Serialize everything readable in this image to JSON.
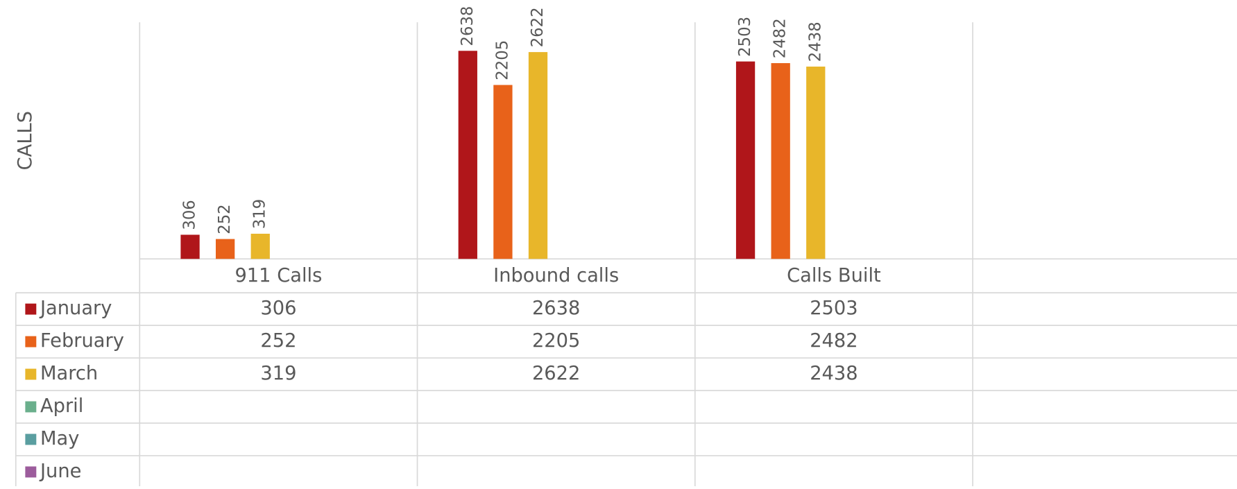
{
  "chart_data": {
    "type": "bar",
    "y_label": "CALLS",
    "categories": [
      "911 Calls",
      "Inbound calls",
      "Calls Built",
      null
    ],
    "series": [
      {
        "name": "January",
        "color": "#b0161a",
        "values": [
          306,
          2638,
          2503,
          null
        ]
      },
      {
        "name": "February",
        "color": "#e8621a",
        "values": [
          252,
          2205,
          2482,
          null
        ]
      },
      {
        "name": "March",
        "color": "#e8b62a",
        "values": [
          319,
          2622,
          2438,
          null
        ]
      },
      {
        "name": "April",
        "color": "#6aaf8c",
        "values": [
          null,
          null,
          null,
          null
        ]
      },
      {
        "name": "May",
        "color": "#5a9ea0",
        "values": [
          null,
          null,
          null,
          null
        ]
      },
      {
        "name": "June",
        "color": "#9c5c9c",
        "values": [
          null,
          null,
          null,
          null
        ]
      }
    ],
    "ylim": [
      0,
      3000
    ],
    "data_table": true
  }
}
